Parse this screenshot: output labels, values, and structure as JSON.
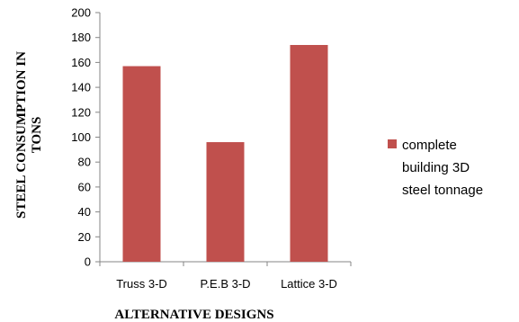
{
  "chart_data": {
    "type": "bar",
    "categories": [
      "Truss 3-D",
      "P.E.B 3-D",
      "Lattice 3-D"
    ],
    "series": [
      {
        "name": "complete building 3D steel tonnage",
        "values": [
          157,
          96,
          174
        ],
        "color": "#C0504D"
      }
    ],
    "xlabel": "ALTERNATIVE DESIGNS",
    "ylabel_lines": [
      "STEEL CONSUMPTION IN",
      "TONS"
    ],
    "ylim": [
      0,
      200
    ],
    "yticks": [
      0,
      20,
      40,
      60,
      80,
      100,
      120,
      140,
      160,
      180,
      200
    ],
    "grid": false,
    "legend_position": "right",
    "legend_lines": [
      "complete",
      "building 3D",
      "steel tonnage"
    ]
  }
}
